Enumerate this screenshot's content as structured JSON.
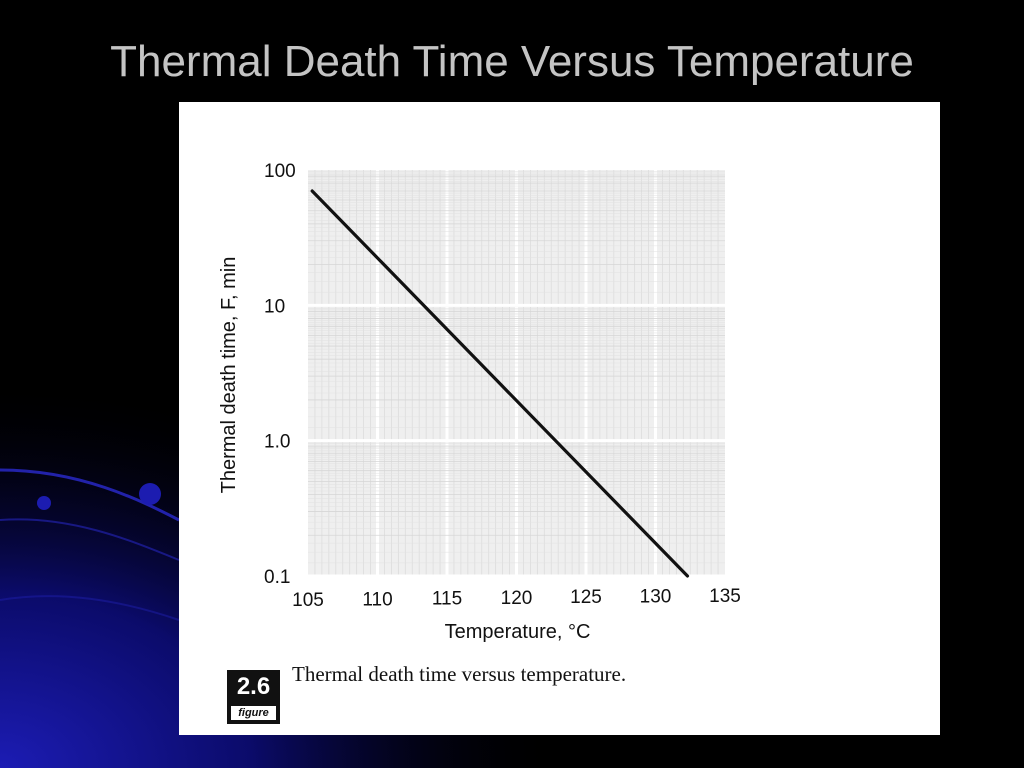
{
  "slide": {
    "title": "Thermal Death Time Versus Temperature",
    "background_color": "#000000",
    "accent_color": "#1a1aa8"
  },
  "figure": {
    "badge_number": "2.6",
    "badge_word": "figure",
    "caption": "Thermal death time versus temperature."
  },
  "chart_data": {
    "type": "line",
    "title": "",
    "xlabel": "Temperature, °C",
    "ylabel": "Thermal death time, F, min",
    "xlim": [
      105,
      135
    ],
    "ylim": [
      0.1,
      100
    ],
    "y_scale": "log",
    "x_ticks": [
      105,
      110,
      115,
      120,
      125,
      130,
      135
    ],
    "y_ticks": [
      100,
      10,
      1.0,
      0.1
    ],
    "y_tick_labels": [
      "100",
      "10",
      "1.0",
      "0.1"
    ],
    "grid": true,
    "line_color": "#111111",
    "series": [
      {
        "x": [
          105.3,
          132.3
        ],
        "y": [
          70,
          0.1
        ]
      }
    ]
  }
}
